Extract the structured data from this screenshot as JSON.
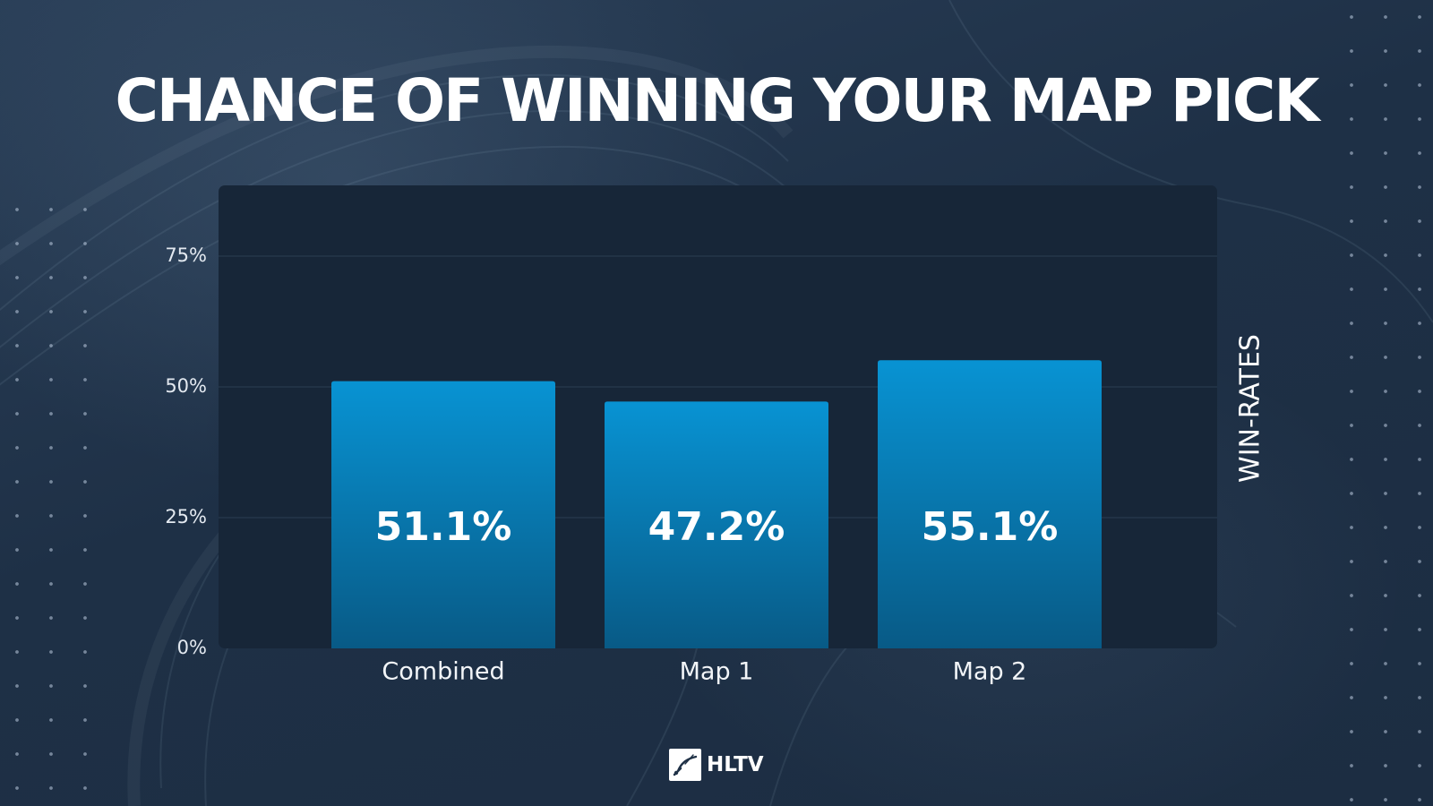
{
  "title": "CHANCE OF WINNING YOUR MAP PICK",
  "brand": {
    "logo_text": "HLTV",
    "logo_icon": "hltv-logo-icon"
  },
  "colors": {
    "background": "#1f3146",
    "plot_background": "#172638",
    "bar_top": "#0893d3",
    "bar_bottom": "#085a86",
    "text": "#ffffff"
  },
  "chart_data": {
    "type": "bar",
    "title": "CHANCE OF WINNING YOUR MAP PICK",
    "categories": [
      "Combined",
      "Map 1",
      "Map 2"
    ],
    "values": [
      51.1,
      47.2,
      55.1
    ],
    "value_labels": [
      "51.1%",
      "47.2%",
      "55.1%"
    ],
    "ylabel": "WIN-RATES",
    "ylabel_position": "right",
    "ylim": [
      0,
      75
    ],
    "yticks": [
      0,
      25,
      50,
      75
    ],
    "ytick_labels": [
      "0%",
      "25%",
      "50%",
      "75%"
    ],
    "grid": true,
    "legend": false
  }
}
